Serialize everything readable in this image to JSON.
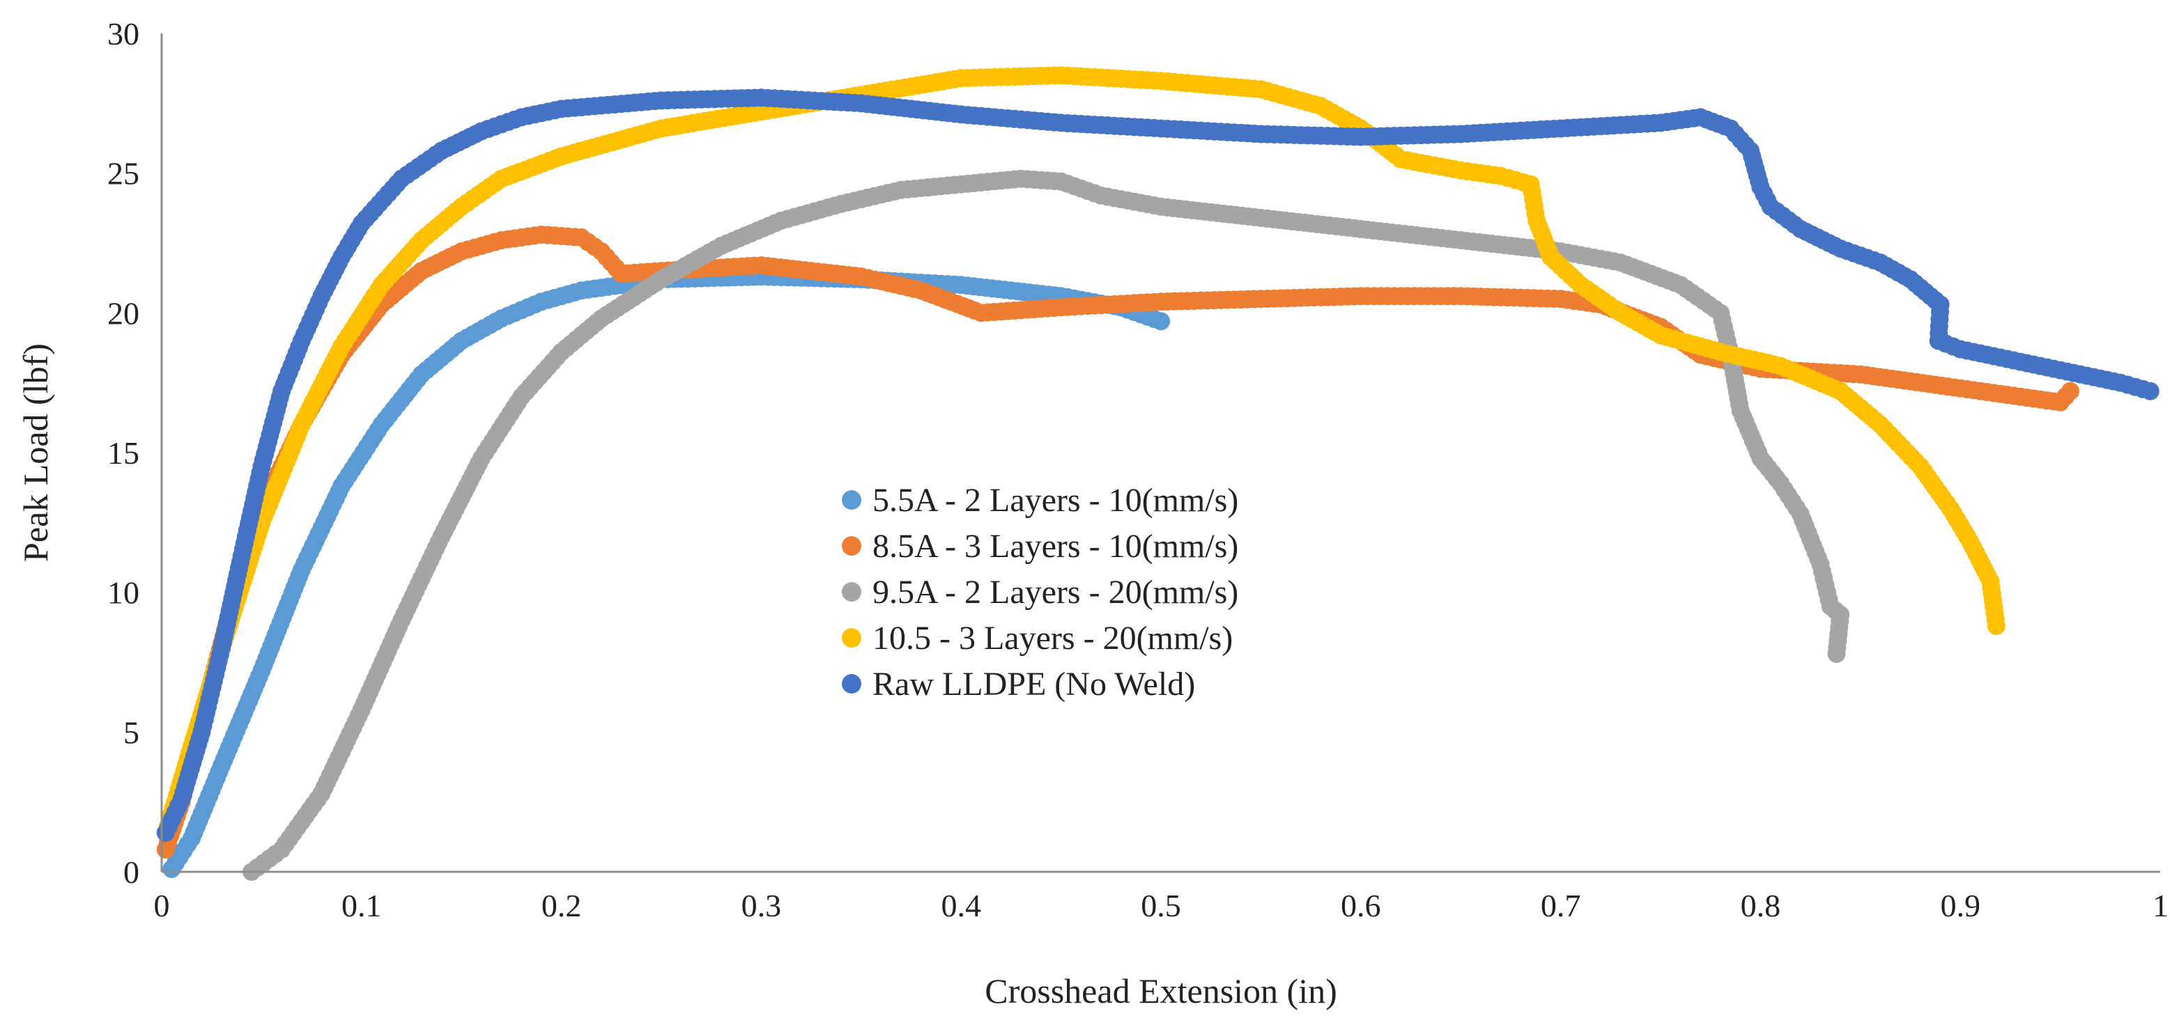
{
  "chart_data": {
    "type": "scatter",
    "title": "",
    "xlabel": "Crosshead Extension (in)",
    "ylabel": "Peak Load (lbf)",
    "xlim": [
      0,
      1
    ],
    "ylim": [
      0,
      30
    ],
    "xticks": [
      "0",
      "0.1",
      "0.2",
      "0.3",
      "0.4",
      "0.5",
      "0.6",
      "0.7",
      "0.8",
      "0.9",
      "1"
    ],
    "yticks": [
      "0",
      "5",
      "10",
      "15",
      "20",
      "25",
      "30"
    ],
    "grid": false,
    "legend_position": "center",
    "series": [
      {
        "name": "5.5A - 2 Layers - 10(mm/s)",
        "color": "#5b9bd5",
        "points": [
          [
            0.005,
            0.1
          ],
          [
            0.015,
            1.2
          ],
          [
            0.03,
            3.8
          ],
          [
            0.05,
            7.2
          ],
          [
            0.07,
            10.8
          ],
          [
            0.09,
            13.8
          ],
          [
            0.11,
            16.0
          ],
          [
            0.13,
            17.8
          ],
          [
            0.15,
            19.0
          ],
          [
            0.17,
            19.8
          ],
          [
            0.19,
            20.4
          ],
          [
            0.21,
            20.8
          ],
          [
            0.25,
            21.2
          ],
          [
            0.3,
            21.3
          ],
          [
            0.35,
            21.2
          ],
          [
            0.4,
            21.0
          ],
          [
            0.45,
            20.6
          ],
          [
            0.48,
            20.2
          ],
          [
            0.5,
            19.7
          ]
        ]
      },
      {
        "name": "8.5A - 3 Layers - 10(mm/s)",
        "color": "#ed7d31",
        "points": [
          [
            0.002,
            0.8
          ],
          [
            0.01,
            2.5
          ],
          [
            0.02,
            5.5
          ],
          [
            0.035,
            9.5
          ],
          [
            0.05,
            13.0
          ],
          [
            0.07,
            16.0
          ],
          [
            0.09,
            18.5
          ],
          [
            0.11,
            20.3
          ],
          [
            0.13,
            21.5
          ],
          [
            0.15,
            22.2
          ],
          [
            0.17,
            22.6
          ],
          [
            0.19,
            22.8
          ],
          [
            0.21,
            22.7
          ],
          [
            0.22,
            22.2
          ],
          [
            0.23,
            21.4
          ],
          [
            0.25,
            21.5
          ],
          [
            0.3,
            21.7
          ],
          [
            0.35,
            21.3
          ],
          [
            0.38,
            20.8
          ],
          [
            0.41,
            20.0
          ],
          [
            0.45,
            20.2
          ],
          [
            0.5,
            20.4
          ],
          [
            0.55,
            20.5
          ],
          [
            0.6,
            20.6
          ],
          [
            0.65,
            20.6
          ],
          [
            0.7,
            20.5
          ],
          [
            0.72,
            20.3
          ],
          [
            0.75,
            19.5
          ],
          [
            0.77,
            18.5
          ],
          [
            0.8,
            18.0
          ],
          [
            0.85,
            17.8
          ],
          [
            0.9,
            17.3
          ],
          [
            0.93,
            17.0
          ],
          [
            0.95,
            16.8
          ],
          [
            0.955,
            17.2
          ]
        ]
      },
      {
        "name": "9.5A - 2 Layers - 20(mm/s)",
        "color": "#a5a5a5",
        "points": [
          [
            0.045,
            0.0
          ],
          [
            0.06,
            0.8
          ],
          [
            0.08,
            2.8
          ],
          [
            0.1,
            5.8
          ],
          [
            0.12,
            9.0
          ],
          [
            0.14,
            12.0
          ],
          [
            0.16,
            14.8
          ],
          [
            0.18,
            17.0
          ],
          [
            0.2,
            18.6
          ],
          [
            0.22,
            19.8
          ],
          [
            0.25,
            21.2
          ],
          [
            0.28,
            22.4
          ],
          [
            0.31,
            23.3
          ],
          [
            0.34,
            23.9
          ],
          [
            0.37,
            24.4
          ],
          [
            0.4,
            24.6
          ],
          [
            0.43,
            24.8
          ],
          [
            0.45,
            24.7
          ],
          [
            0.47,
            24.2
          ],
          [
            0.5,
            23.8
          ],
          [
            0.55,
            23.4
          ],
          [
            0.6,
            23.0
          ],
          [
            0.65,
            22.6
          ],
          [
            0.7,
            22.2
          ],
          [
            0.73,
            21.8
          ],
          [
            0.76,
            21.0
          ],
          [
            0.78,
            20.0
          ],
          [
            0.785,
            18.5
          ],
          [
            0.79,
            16.5
          ],
          [
            0.8,
            14.8
          ],
          [
            0.81,
            13.9
          ],
          [
            0.82,
            12.8
          ],
          [
            0.83,
            11.0
          ],
          [
            0.835,
            9.5
          ],
          [
            0.84,
            9.2
          ],
          [
            0.838,
            7.8
          ]
        ]
      },
      {
        "name": "10.5 - 3 Layers - 20(mm/s)",
        "color": "#ffc000",
        "points": [
          [
            0.003,
            1.6
          ],
          [
            0.015,
            4.5
          ],
          [
            0.03,
            8.0
          ],
          [
            0.05,
            12.5
          ],
          [
            0.07,
            16.0
          ],
          [
            0.09,
            18.8
          ],
          [
            0.11,
            21.0
          ],
          [
            0.13,
            22.6
          ],
          [
            0.15,
            23.8
          ],
          [
            0.17,
            24.8
          ],
          [
            0.2,
            25.6
          ],
          [
            0.25,
            26.6
          ],
          [
            0.3,
            27.2
          ],
          [
            0.35,
            27.8
          ],
          [
            0.4,
            28.4
          ],
          [
            0.45,
            28.5
          ],
          [
            0.5,
            28.3
          ],
          [
            0.55,
            28.0
          ],
          [
            0.58,
            27.4
          ],
          [
            0.6,
            26.6
          ],
          [
            0.62,
            25.5
          ],
          [
            0.65,
            25.1
          ],
          [
            0.67,
            24.9
          ],
          [
            0.685,
            24.6
          ],
          [
            0.688,
            23.3
          ],
          [
            0.695,
            22.0
          ],
          [
            0.71,
            21.0
          ],
          [
            0.73,
            20.0
          ],
          [
            0.75,
            19.2
          ],
          [
            0.78,
            18.6
          ],
          [
            0.81,
            18.1
          ],
          [
            0.84,
            17.2
          ],
          [
            0.86,
            16.0
          ],
          [
            0.88,
            14.5
          ],
          [
            0.895,
            13.0
          ],
          [
            0.905,
            11.8
          ],
          [
            0.915,
            10.4
          ],
          [
            0.918,
            8.8
          ]
        ]
      },
      {
        "name": "Raw LLDPE (No Weld)",
        "color": "#4472c4",
        "points": [
          [
            0.002,
            1.4
          ],
          [
            0.01,
            2.6
          ],
          [
            0.02,
            5.0
          ],
          [
            0.03,
            8.0
          ],
          [
            0.04,
            11.3
          ],
          [
            0.05,
            14.5
          ],
          [
            0.06,
            17.2
          ],
          [
            0.07,
            19.0
          ],
          [
            0.08,
            20.6
          ],
          [
            0.09,
            22.0
          ],
          [
            0.1,
            23.2
          ],
          [
            0.12,
            24.8
          ],
          [
            0.14,
            25.8
          ],
          [
            0.16,
            26.5
          ],
          [
            0.18,
            27.0
          ],
          [
            0.2,
            27.3
          ],
          [
            0.25,
            27.6
          ],
          [
            0.3,
            27.7
          ],
          [
            0.35,
            27.5
          ],
          [
            0.4,
            27.1
          ],
          [
            0.45,
            26.8
          ],
          [
            0.5,
            26.6
          ],
          [
            0.55,
            26.4
          ],
          [
            0.6,
            26.3
          ],
          [
            0.65,
            26.4
          ],
          [
            0.7,
            26.6
          ],
          [
            0.75,
            26.8
          ],
          [
            0.77,
            27.0
          ],
          [
            0.785,
            26.6
          ],
          [
            0.795,
            25.8
          ],
          [
            0.8,
            24.5
          ],
          [
            0.805,
            23.8
          ],
          [
            0.82,
            23.0
          ],
          [
            0.84,
            22.3
          ],
          [
            0.86,
            21.8
          ],
          [
            0.875,
            21.2
          ],
          [
            0.885,
            20.6
          ],
          [
            0.89,
            20.3
          ],
          [
            0.889,
            19.0
          ],
          [
            0.9,
            18.7
          ],
          [
            0.92,
            18.4
          ],
          [
            0.94,
            18.1
          ],
          [
            0.96,
            17.8
          ],
          [
            0.98,
            17.5
          ],
          [
            0.995,
            17.2
          ]
        ]
      }
    ]
  }
}
